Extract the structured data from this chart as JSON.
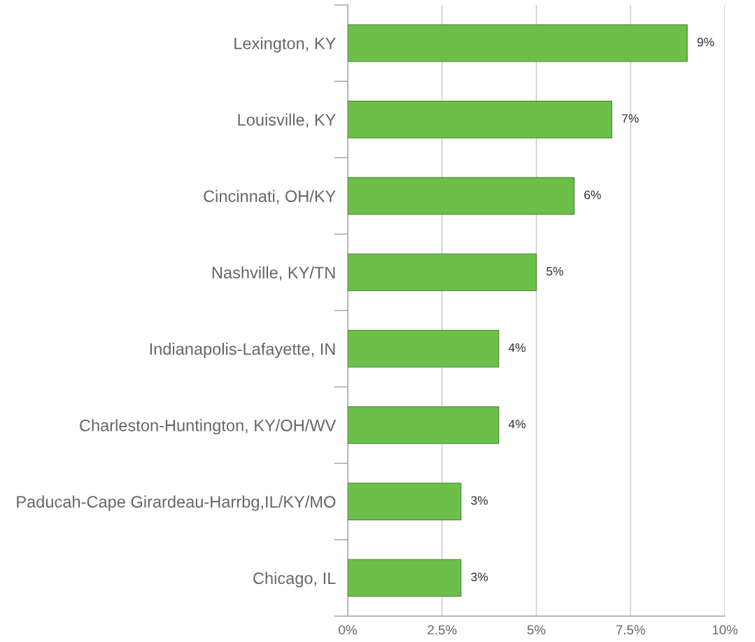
{
  "chart_data": {
    "type": "bar",
    "orientation": "horizontal",
    "categories": [
      "Lexington, KY",
      "Louisville, KY",
      "Cincinnati, OH/KY",
      "Nashville, KY/TN",
      "Indianapolis-Lafayette, IN",
      "Charleston-Huntington, KY/OH/WV",
      "Paducah-Cape Girardeau-Harrbg,IL/KY/MO",
      "Chicago, IL"
    ],
    "values": [
      9,
      7,
      6,
      5,
      4,
      4,
      3,
      3
    ],
    "value_labels": [
      "9%",
      "7%",
      "6%",
      "5%",
      "4%",
      "4%",
      "3%",
      "3%"
    ],
    "color": "#6cc04a",
    "xlim": [
      0,
      10
    ],
    "xticks": [
      {
        "value": 0,
        "label": "0%"
      },
      {
        "value": 2.5,
        "label": "2.5%"
      },
      {
        "value": 5,
        "label": "5%"
      },
      {
        "value": 7.5,
        "label": "7.5%"
      },
      {
        "value": 10,
        "label": "10%"
      }
    ],
    "grid": "x"
  }
}
